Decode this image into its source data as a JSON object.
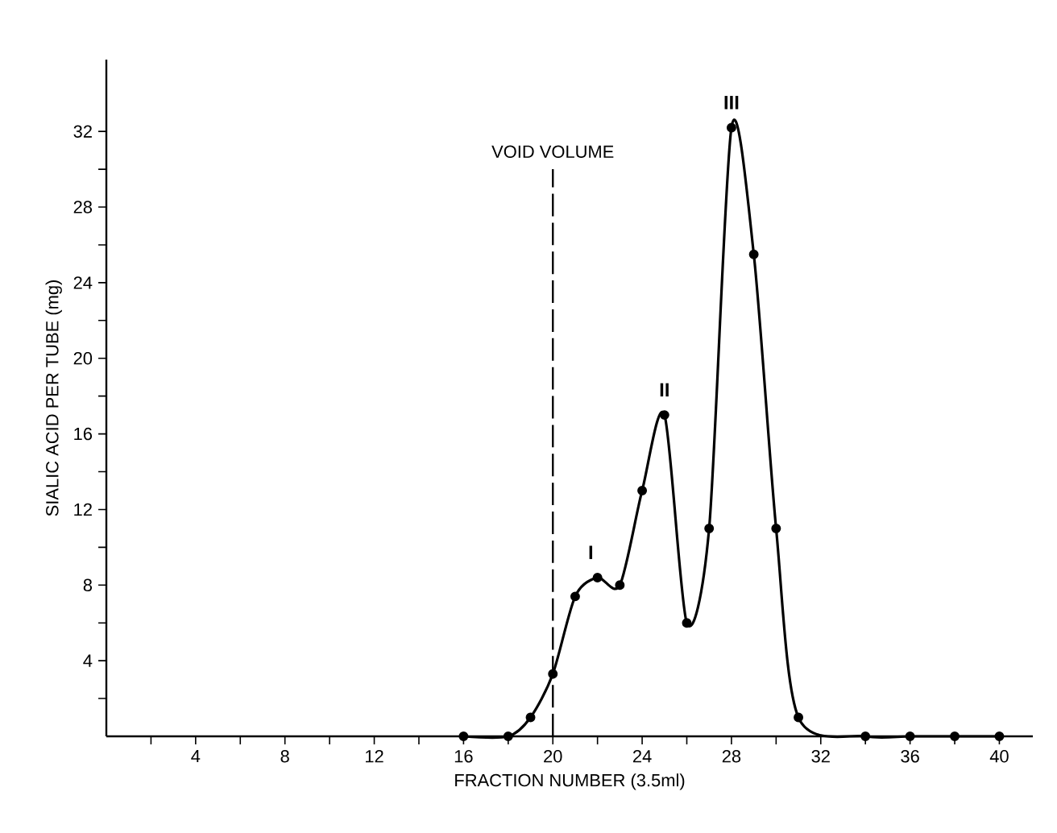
{
  "chart_data": {
    "type": "line",
    "xlabel": "FRACTION NUMBER (3.5ml)",
    "ylabel": "SIALIC ACID PER TUBE (mg)",
    "xlim": [
      0,
      41.5
    ],
    "ylim": [
      0,
      35.8
    ],
    "xticks": [
      {
        "value": 2,
        "label": null
      },
      4,
      {
        "value": 6,
        "label": null
      },
      8,
      {
        "value": 10,
        "label": null
      },
      12,
      {
        "value": 14,
        "label": null
      },
      16,
      {
        "value": 18,
        "label": null
      },
      20,
      {
        "value": 22,
        "label": null
      },
      24,
      {
        "value": 26,
        "label": null
      },
      28,
      {
        "value": 30,
        "label": null
      },
      32,
      {
        "value": 34,
        "label": null
      },
      36,
      {
        "value": 38,
        "label": null
      },
      40
    ],
    "yticks": [
      {
        "value": 2,
        "label": null
      },
      4,
      {
        "value": 6,
        "label": null
      },
      8,
      {
        "value": 10,
        "label": null
      },
      12,
      {
        "value": 14,
        "label": null
      },
      16,
      {
        "value": 18,
        "label": null
      },
      20,
      {
        "value": 22,
        "label": null
      },
      24,
      {
        "value": 26,
        "label": null
      },
      28,
      {
        "value": 30,
        "label": null
      },
      32
    ],
    "series": [
      {
        "color": "#000000",
        "x": [
          16,
          18,
          19,
          20,
          21,
          22,
          23,
          24,
          25,
          26,
          27,
          28,
          29,
          30,
          31,
          34,
          36,
          38,
          40
        ],
        "values": [
          0,
          0,
          1,
          3.3,
          7.4,
          8.4,
          8,
          13,
          17,
          6,
          11,
          32.2,
          25.5,
          11,
          1,
          0,
          0,
          0,
          0
        ]
      }
    ],
    "marker": "circle",
    "line_style": "solid",
    "ref_lines": [
      {
        "axis": "x",
        "value": 20,
        "label": "VOID VOLUME",
        "line_style": "dashed",
        "color": "#000000"
      }
    ],
    "annotations": [
      {
        "text": "I",
        "x": 21.7,
        "y": 8.4
      },
      {
        "text": "II",
        "x": 25,
        "y": 17
      },
      {
        "text": "III",
        "x": 28,
        "y": 32.2
      }
    ]
  }
}
